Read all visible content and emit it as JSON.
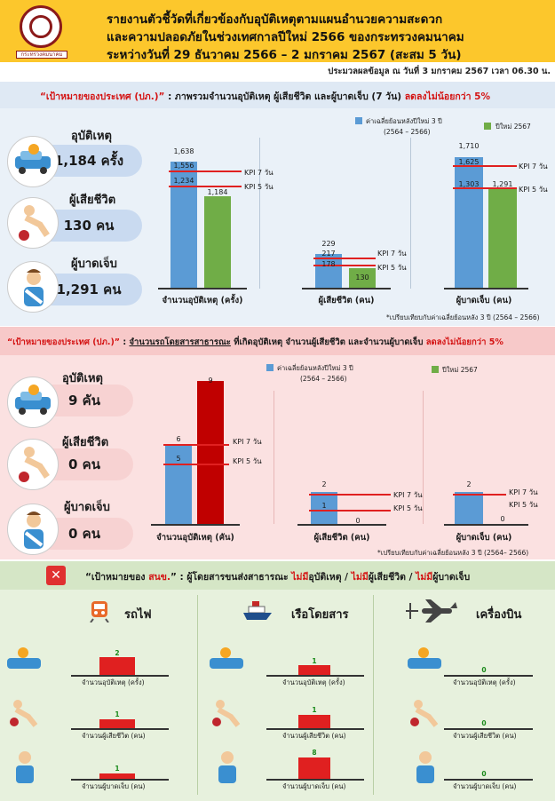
{
  "header": {
    "logo_caption": "กระทรวงคมนาคม",
    "title_line1": "รายงานตัวชี้วัดที่เกี่ยวข้องกับอุบัติเหตุตามแผนอำนวยความสะดวก",
    "title_line2": "และความปลอดภัยในช่วงเทศกาลปีใหม่ 2566 ของกระทรวงคมนาคม",
    "title_line3": "ระหว่างวันที่ 29 ธันวาคม 2566 – 2 มกราคม 2567 (สะสม 5 วัน)",
    "date_line": "ประมวลผลข้อมูล ณ วันที่ 3 มกราคม 2567 เวลา 06.30 น."
  },
  "section1": {
    "band_a": "“เป้าหมายของประเทศ (ปภ.)” ",
    "band_b": ": ภาพรวมจำนวนอุบัติเหตุ ผู้เสียชีวิต และผู้บาดเจ็บ (7 วัน) ",
    "band_c": "ลดลงไม่น้อยกว่า 5%",
    "accident_label": "อุบัติเหตุ",
    "accident_value": "1,184 ครั้ง",
    "death_label": "ผู้เสียชีวิต",
    "death_value": "130 คน",
    "injury_label": "ผู้บาดเจ็บ",
    "injury_value": "1,291 คน",
    "legend_blue": "ค่าเฉลี่ยย้อนหลังปีใหม่ 3 ปี",
    "legend_blue_sub": "(2564 – 2566)",
    "legend_green": "ปีใหม่ 2567",
    "note": "*เปรียบเทียบกับค่าเฉลี่ยย้อนหลัง 3 ปี (2564 – 2566)",
    "kpi7": "KPI 7 วัน",
    "kpi5": "KPI 5 วัน",
    "charts": [
      {
        "xlabel": "จำนวนอุบัติเหตุ (ครั้ง)",
        "avg": "1,638",
        "green": "1,184",
        "kpi7": "1,556",
        "kpi5": "1,234"
      },
      {
        "xlabel": "ผู้เสียชีวิต (คน)",
        "avg": "229",
        "green": "130",
        "kpi7": "217",
        "kpi5": "178"
      },
      {
        "xlabel": "ผู้บาดเจ็บ (คน)",
        "avg": "1,710",
        "green": "1,291",
        "kpi7": "1,625",
        "kpi5": "1,303"
      }
    ]
  },
  "section2": {
    "band_a": "“เป้าหมายของประเทศ (ปภ.)” ",
    "band_b": ": ",
    "band_u": "จำนวนรถโดยสารสาธารณะ",
    "band_c": " ที่เกิดอุบัติเหตุ จำนวนผู้เสียชีวิต และจำนวนผู้บาดเจ็บ ",
    "band_d": "ลดลงไม่น้อยกว่า 5%",
    "accident_label": "อุบัติเหตุ",
    "accident_value": "9 คัน",
    "death_label": "ผู้เสียชีวิต",
    "death_value": "0 คน",
    "injury_label": "ผู้บาดเจ็บ",
    "injury_value": "0 คน",
    "legend_blue": "ค่าเฉลี่ยย้อนหลังปีใหม่ 3 ปี",
    "legend_blue_sub": "(2564 – 2566)",
    "legend_green": "ปีใหม่ 2567",
    "note": "*เปรียบเทียบกับค่าเฉลี่ยย้อนหลัง 3 ปี (2564– 2566)",
    "kpi7": "KPI 7 วัน",
    "kpi5": "KPI 5 วัน",
    "charts": [
      {
        "xlabel": "จำนวนอุบัติเหตุ (คัน)",
        "avg": "6",
        "green": "9",
        "kpi5": "5"
      },
      {
        "xlabel": "ผู้เสียชีวิต (คน)",
        "avg": "2",
        "green": "0",
        "kpi5": "1"
      },
      {
        "xlabel": "ผู้บาดเจ็บ (คน)",
        "avg": "2",
        "green": "0"
      }
    ]
  },
  "section3": {
    "band_a": "“เป้าหมายของ ",
    "band_b": "สนข.",
    "band_c": "” :  ผู้โดยสารขนส่งสาธารณะ ",
    "band_d": "ไม่มี",
    "band_e": "อุบัติเหตุ / ",
    "band_f": "ไม่มี",
    "band_g": "ผู้เสียชีวิต / ",
    "band_h": "ไม่มี",
    "band_i": "ผู้บาดเจ็บ",
    "x_symbol": "✕",
    "modes": [
      {
        "title": "รถไฟ",
        "values": [
          "2",
          "1",
          "1"
        ]
      },
      {
        "title": "เรือโดยสาร",
        "values": [
          "1",
          "1",
          "8"
        ]
      },
      {
        "title": "เครื่องบิน",
        "values": [
          "0",
          "0",
          "0"
        ]
      }
    ],
    "axis_accident": "จำนวนอุบัติเหตุ (ครั้ง)",
    "axis_death": "จำนวนผู้เสียชีวิต (คน)",
    "axis_injury": "จำนวนผู้บาดเจ็บ (คน)"
  },
  "chart_data": [
    {
      "type": "bar",
      "title": "",
      "categories": [
        "จำนวนอุบัติเหตุ (ครั้ง)",
        "ผู้เสียชีวิต (คน)",
        "ผู้บาดเจ็บ (คน)"
      ],
      "series": [
        {
          "name": "ค่าเฉลี่ยย้อนหลังปีใหม่ 3 ปี (2564 – 2566)",
          "values": [
            1638,
            229,
            1710
          ]
        },
        {
          "name": "ปีใหม่ 2567",
          "values": [
            1184,
            130,
            1291
          ]
        }
      ],
      "kpi_7_day": [
        1556,
        217,
        1625
      ],
      "kpi_5_day": [
        1234,
        178,
        1303
      ]
    },
    {
      "type": "bar",
      "title": "",
      "categories": [
        "จำนวนอุบัติเหตุ (คัน)",
        "ผู้เสียชีวิต (คน)",
        "ผู้บาดเจ็บ (คน)"
      ],
      "series": [
        {
          "name": "ค่าเฉลี่ยย้อนหลังปีใหม่ 3 ปี (2564 – 2566)",
          "values": [
            6,
            2,
            2
          ]
        },
        {
          "name": "ปีใหม่ 2567",
          "values": [
            9,
            0,
            0
          ]
        }
      ],
      "kpi_5_day": [
        5,
        1,
        null
      ]
    },
    {
      "type": "bar",
      "title": "",
      "categories": [
        "รถไฟ",
        "เรือโดยสาร",
        "เครื่องบิน"
      ],
      "series": [
        {
          "name": "จำนวนอุบัติเหตุ (ครั้ง)",
          "values": [
            2,
            1,
            0
          ]
        },
        {
          "name": "จำนวนผู้เสียชีวิต (คน)",
          "values": [
            1,
            1,
            0
          ]
        },
        {
          "name": "จำนวนผู้บาดเจ็บ (คน)",
          "values": [
            1,
            8,
            0
          ]
        }
      ]
    }
  ],
  "colors": {
    "header": "#fcc72c",
    "avg_bar": "#5b9bd5",
    "current_bar": "#70ad47",
    "bus_bar": "#c00000",
    "kpi_line": "#e02020"
  }
}
